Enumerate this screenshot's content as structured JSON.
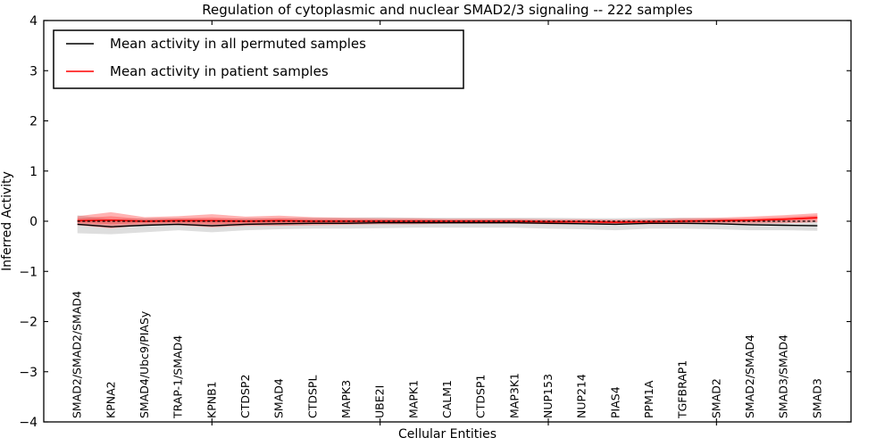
{
  "figure": {
    "title": "Regulation of cytoplasmic and nuclear SMAD2/3 signaling -- 222 samples",
    "xlabel": "Cellular Entities",
    "ylabel": "Inferred Activity"
  },
  "legend": {
    "position": "upper left",
    "entries": [
      {
        "label": "Mean activity in all permuted samples",
        "color": "#000000"
      },
      {
        "label": "Mean activity in patient samples",
        "color": "#ff0000"
      }
    ]
  },
  "colors": {
    "permuted_line": "#000000",
    "patient_line": "#ff0000",
    "permuted_band": "rgba(0,0,0,0.13)",
    "patient_band_outer": "rgba(255,0,0,0.30)",
    "patient_band_inner": "rgba(255,0,0,0.25)",
    "zero_line": "#000000",
    "frame": "#000000"
  },
  "chart_data": {
    "type": "line",
    "title": "Regulation of cytoplasmic and nuclear SMAD2/3 signaling -- 222 samples",
    "xlabel": "Cellular Entities",
    "ylabel": "Inferred Activity",
    "ylim": [
      -4,
      4
    ],
    "xlim": [
      0,
      24
    ],
    "grid": false,
    "legend_position": "upper left",
    "yticks": [
      4,
      3,
      2,
      1,
      0,
      -1,
      -2,
      -3,
      -4
    ],
    "yticklabels": [
      "4",
      "3",
      "2",
      "1",
      "0",
      "−1",
      "−2",
      "−3",
      "−4"
    ],
    "xtick_positions": [
      5,
      10,
      15,
      20
    ],
    "categories": [
      "SMAD2/SMAD2/SMAD4",
      "KPNA2",
      "SMAD4/Ubc9/PIASy",
      "TRAP-1/SMAD4",
      "KPNB1",
      "CTDSP2",
      "SMAD4",
      "CTDSPL",
      "MAPK3",
      "UBE2I",
      "MAPK1",
      "CALM1",
      "CTDSP1",
      "MAP3K1",
      "NUP153",
      "NUP214",
      "PIAS4",
      "PPM1A",
      "TGFBRAP1",
      "SMAD2",
      "SMAD2/SMAD4",
      "SMAD3/SMAD4",
      "SMAD3"
    ],
    "series": [
      {
        "name": "Mean activity in all permuted samples",
        "color": "#000000",
        "style": "solid",
        "values": [
          -0.06,
          -0.11,
          -0.08,
          -0.06,
          -0.09,
          -0.06,
          -0.05,
          -0.04,
          -0.04,
          -0.03,
          -0.03,
          -0.03,
          -0.03,
          -0.03,
          -0.04,
          -0.05,
          -0.06,
          -0.04,
          -0.04,
          -0.05,
          -0.07,
          -0.08,
          -0.09
        ],
        "band_std": [
          0.18,
          0.15,
          0.14,
          0.12,
          0.13,
          0.12,
          0.11,
          0.11,
          0.11,
          0.11,
          0.1,
          0.1,
          0.1,
          0.1,
          0.11,
          0.11,
          0.12,
          0.11,
          0.11,
          0.11,
          0.11,
          0.1,
          0.1
        ]
      },
      {
        "name": "Mean activity in patient samples",
        "color": "#ff0000",
        "style": "solid",
        "values": [
          0.01,
          0.02,
          0.0,
          0.01,
          0.01,
          0.0,
          0.01,
          0.0,
          0.0,
          0.0,
          0.0,
          0.0,
          0.0,
          0.0,
          -0.01,
          -0.01,
          -0.02,
          -0.01,
          0.0,
          0.01,
          0.02,
          0.04,
          0.07
        ],
        "band_std": [
          0.09,
          0.16,
          0.08,
          0.09,
          0.13,
          0.09,
          0.1,
          0.08,
          0.07,
          0.06,
          0.06,
          0.05,
          0.05,
          0.05,
          0.05,
          0.05,
          0.05,
          0.05,
          0.06,
          0.06,
          0.07,
          0.08,
          0.09
        ]
      },
      {
        "name": "zero-reference",
        "color": "#000000",
        "style": "dashed",
        "values": [
          0,
          0,
          0,
          0,
          0,
          0,
          0,
          0,
          0,
          0,
          0,
          0,
          0,
          0,
          0,
          0,
          0,
          0,
          0,
          0,
          0,
          0,
          0
        ]
      }
    ]
  }
}
